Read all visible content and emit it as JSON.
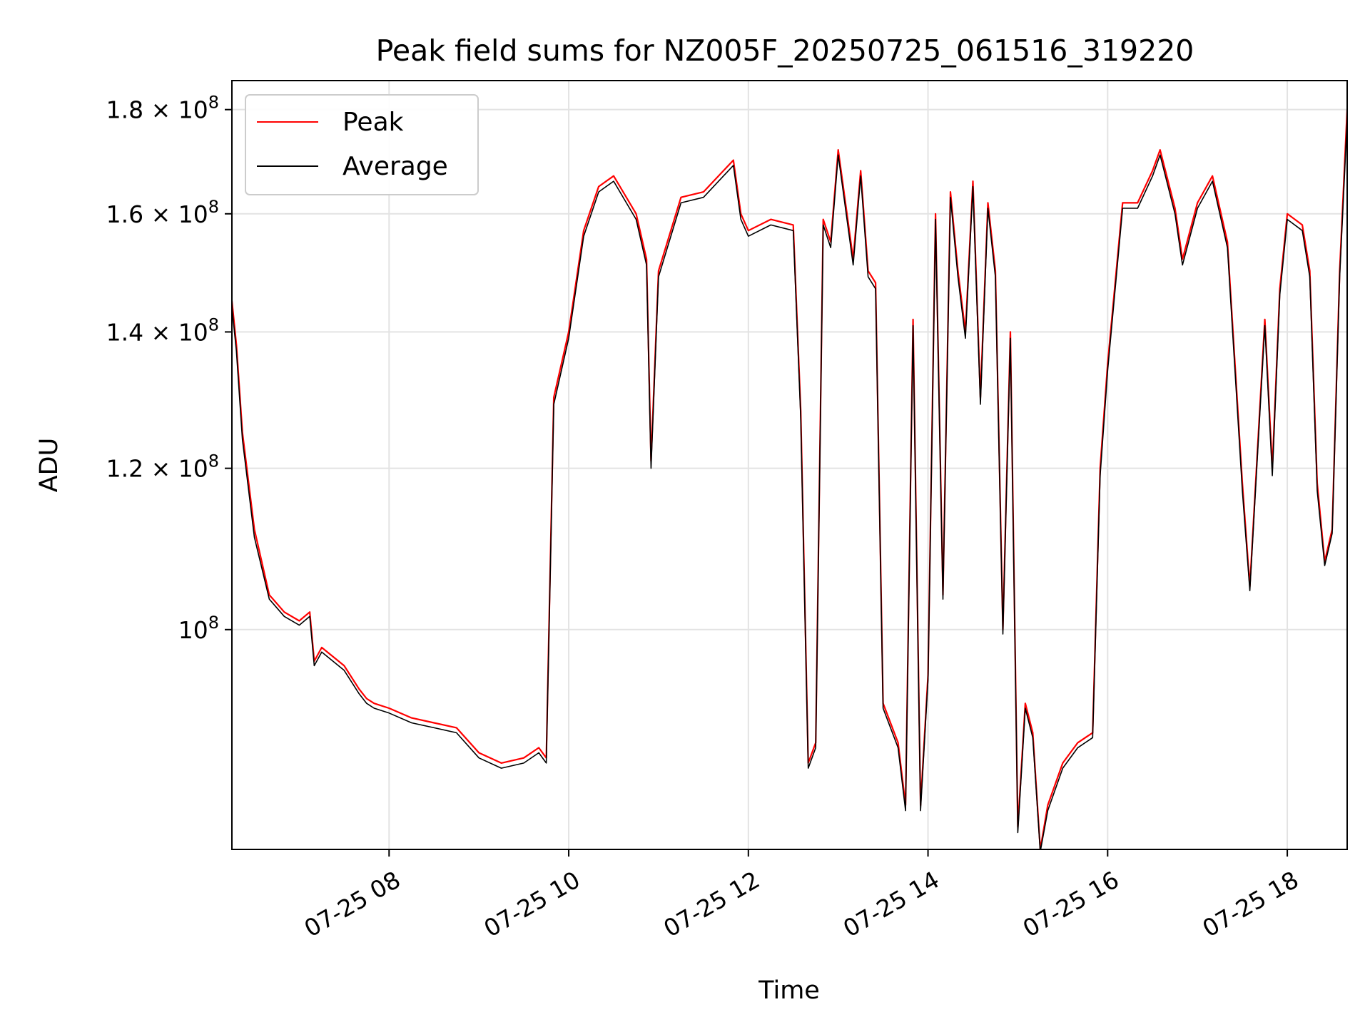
{
  "chart_data": {
    "type": "line",
    "title": "Peak field sums for NZ005F_20250725_061516_319220",
    "xlabel": "Time",
    "ylabel": "ADU",
    "y_scale": "log",
    "ylim": [
      78000000,
      186000000
    ],
    "xlim": [
      "2025-07-25 06:15",
      "2025-07-25 18:40"
    ],
    "grid": true,
    "legend_position": "top-left",
    "x_ticks": [
      {
        "x": "2025-07-25 08:00",
        "label": "07-25 08"
      },
      {
        "x": "2025-07-25 10:00",
        "label": "07-25 10"
      },
      {
        "x": "2025-07-25 12:00",
        "label": "07-25 12"
      },
      {
        "x": "2025-07-25 14:00",
        "label": "07-25 14"
      },
      {
        "x": "2025-07-25 16:00",
        "label": "07-25 16"
      },
      {
        "x": "2025-07-25 18:00",
        "label": "07-25 18"
      }
    ],
    "y_ticks": [
      {
        "y": 100000000,
        "label_base": "10",
        "label_exp": "8",
        "label_mult": ""
      },
      {
        "y": 120000000,
        "label_base": "10",
        "label_exp": "8",
        "label_mult": "1.2 × "
      },
      {
        "y": 140000000,
        "label_base": "10",
        "label_exp": "8",
        "label_mult": "1.4 × "
      },
      {
        "y": 160000000,
        "label_base": "10",
        "label_exp": "8",
        "label_mult": "1.6 × "
      },
      {
        "y": 180000000,
        "label_base": "10",
        "label_exp": "8",
        "label_mult": "1.8 × "
      }
    ],
    "series": [
      {
        "name": "Peak",
        "color": "#ff0000",
        "x": [
          "2025-07-25 06:15",
          "2025-07-25 06:18",
          "2025-07-25 06:22",
          "2025-07-25 06:30",
          "2025-07-25 06:40",
          "2025-07-25 06:50",
          "2025-07-25 07:00",
          "2025-07-25 07:07",
          "2025-07-25 07:10",
          "2025-07-25 07:15",
          "2025-07-25 07:30",
          "2025-07-25 07:40",
          "2025-07-25 07:45",
          "2025-07-25 07:50",
          "2025-07-25 08:00",
          "2025-07-25 08:15",
          "2025-07-25 08:30",
          "2025-07-25 08:45",
          "2025-07-25 09:00",
          "2025-07-25 09:15",
          "2025-07-25 09:30",
          "2025-07-25 09:40",
          "2025-07-25 09:45",
          "2025-07-25 09:50",
          "2025-07-25 10:00",
          "2025-07-25 10:10",
          "2025-07-25 10:20",
          "2025-07-25 10:30",
          "2025-07-25 10:45",
          "2025-07-25 10:52",
          "2025-07-25 10:55",
          "2025-07-25 11:00",
          "2025-07-25 11:15",
          "2025-07-25 11:30",
          "2025-07-25 11:50",
          "2025-07-25 11:55",
          "2025-07-25 12:00",
          "2025-07-25 12:15",
          "2025-07-25 12:30",
          "2025-07-25 12:35",
          "2025-07-25 12:40",
          "2025-07-25 12:45",
          "2025-07-25 12:50",
          "2025-07-25 12:55",
          "2025-07-25 13:00",
          "2025-07-25 13:10",
          "2025-07-25 13:15",
          "2025-07-25 13:20",
          "2025-07-25 13:25",
          "2025-07-25 13:30",
          "2025-07-25 13:40",
          "2025-07-25 13:45",
          "2025-07-25 13:50",
          "2025-07-25 13:55",
          "2025-07-25 14:00",
          "2025-07-25 14:05",
          "2025-07-25 14:10",
          "2025-07-25 14:15",
          "2025-07-25 14:20",
          "2025-07-25 14:25",
          "2025-07-25 14:30",
          "2025-07-25 14:35",
          "2025-07-25 14:40",
          "2025-07-25 14:45",
          "2025-07-25 14:50",
          "2025-07-25 14:55",
          "2025-07-25 15:00",
          "2025-07-25 15:05",
          "2025-07-25 15:10",
          "2025-07-25 15:15",
          "2025-07-25 15:20",
          "2025-07-25 15:30",
          "2025-07-25 15:40",
          "2025-07-25 15:50",
          "2025-07-25 15:55",
          "2025-07-25 16:00",
          "2025-07-25 16:10",
          "2025-07-25 16:20",
          "2025-07-25 16:30",
          "2025-07-25 16:35",
          "2025-07-25 16:45",
          "2025-07-25 16:50",
          "2025-07-25 17:00",
          "2025-07-25 17:10",
          "2025-07-25 17:20",
          "2025-07-25 17:30",
          "2025-07-25 17:35",
          "2025-07-25 17:45",
          "2025-07-25 17:50",
          "2025-07-25 17:55",
          "2025-07-25 18:00",
          "2025-07-25 18:10",
          "2025-07-25 18:15",
          "2025-07-25 18:20",
          "2025-07-25 18:25",
          "2025-07-25 18:30",
          "2025-07-25 18:35",
          "2025-07-25 18:40"
        ],
        "values": [
          145000000,
          138000000,
          125000000,
          112000000,
          104000000,
          102000000,
          101000000,
          102000000,
          96500000,
          98000000,
          96000000,
          93500000,
          92500000,
          92000000,
          91500000,
          90500000,
          90000000,
          89500000,
          87000000,
          86000000,
          86500000,
          87500000,
          86500000,
          130000000,
          140000000,
          157000000,
          165000000,
          167000000,
          160000000,
          152000000,
          121000000,
          150000000,
          163000000,
          164000000,
          170000000,
          160000000,
          157000000,
          159000000,
          158000000,
          128000000,
          86000000,
          88000000,
          159000000,
          155000000,
          172000000,
          152000000,
          168000000,
          150000000,
          148000000,
          92000000,
          88000000,
          82000000,
          142000000,
          82000000,
          95000000,
          160000000,
          104000000,
          164000000,
          150000000,
          140000000,
          166000000,
          130000000,
          162000000,
          150000000,
          100000000,
          140000000,
          80000000,
          92000000,
          89000000,
          78000000,
          82000000,
          86000000,
          88000000,
          89000000,
          120000000,
          135000000,
          162000000,
          162000000,
          168000000,
          172000000,
          161000000,
          152000000,
          162000000,
          167000000,
          155000000,
          118000000,
          105000000,
          142000000,
          120000000,
          147000000,
          160000000,
          158000000,
          150000000,
          118000000,
          108000000,
          112000000,
          150000000,
          180000000
        ]
      },
      {
        "name": "Average",
        "color": "#000000",
        "x": [
          "2025-07-25 06:15",
          "2025-07-25 06:18",
          "2025-07-25 06:22",
          "2025-07-25 06:30",
          "2025-07-25 06:40",
          "2025-07-25 06:50",
          "2025-07-25 07:00",
          "2025-07-25 07:07",
          "2025-07-25 07:10",
          "2025-07-25 07:15",
          "2025-07-25 07:30",
          "2025-07-25 07:40",
          "2025-07-25 07:45",
          "2025-07-25 07:50",
          "2025-07-25 08:00",
          "2025-07-25 08:15",
          "2025-07-25 08:30",
          "2025-07-25 08:45",
          "2025-07-25 09:00",
          "2025-07-25 09:15",
          "2025-07-25 09:30",
          "2025-07-25 09:40",
          "2025-07-25 09:45",
          "2025-07-25 09:50",
          "2025-07-25 10:00",
          "2025-07-25 10:10",
          "2025-07-25 10:20",
          "2025-07-25 10:30",
          "2025-07-25 10:45",
          "2025-07-25 10:52",
          "2025-07-25 10:55",
          "2025-07-25 11:00",
          "2025-07-25 11:15",
          "2025-07-25 11:30",
          "2025-07-25 11:50",
          "2025-07-25 11:55",
          "2025-07-25 12:00",
          "2025-07-25 12:15",
          "2025-07-25 12:30",
          "2025-07-25 12:35",
          "2025-07-25 12:40",
          "2025-07-25 12:45",
          "2025-07-25 12:50",
          "2025-07-25 12:55",
          "2025-07-25 13:00",
          "2025-07-25 13:10",
          "2025-07-25 13:15",
          "2025-07-25 13:20",
          "2025-07-25 13:25",
          "2025-07-25 13:30",
          "2025-07-25 13:40",
          "2025-07-25 13:45",
          "2025-07-25 13:50",
          "2025-07-25 13:55",
          "2025-07-25 14:00",
          "2025-07-25 14:05",
          "2025-07-25 14:10",
          "2025-07-25 14:15",
          "2025-07-25 14:20",
          "2025-07-25 14:25",
          "2025-07-25 14:30",
          "2025-07-25 14:35",
          "2025-07-25 14:40",
          "2025-07-25 14:45",
          "2025-07-25 14:50",
          "2025-07-25 14:55",
          "2025-07-25 15:00",
          "2025-07-25 15:05",
          "2025-07-25 15:10",
          "2025-07-25 15:15",
          "2025-07-25 15:20",
          "2025-07-25 15:30",
          "2025-07-25 15:40",
          "2025-07-25 15:50",
          "2025-07-25 15:55",
          "2025-07-25 16:00",
          "2025-07-25 16:10",
          "2025-07-25 16:20",
          "2025-07-25 16:30",
          "2025-07-25 16:35",
          "2025-07-25 16:45",
          "2025-07-25 16:50",
          "2025-07-25 17:00",
          "2025-07-25 17:10",
          "2025-07-25 17:20",
          "2025-07-25 17:30",
          "2025-07-25 17:35",
          "2025-07-25 17:45",
          "2025-07-25 17:50",
          "2025-07-25 17:55",
          "2025-07-25 18:00",
          "2025-07-25 18:10",
          "2025-07-25 18:15",
          "2025-07-25 18:20",
          "2025-07-25 18:25",
          "2025-07-25 18:30",
          "2025-07-25 18:35",
          "2025-07-25 18:40"
        ],
        "values": [
          144000000,
          137000000,
          124000000,
          111000000,
          103500000,
          101500000,
          100500000,
          101500000,
          96000000,
          97500000,
          95500000,
          93000000,
          92000000,
          91500000,
          91000000,
          90000000,
          89500000,
          89000000,
          86500000,
          85500000,
          86000000,
          87000000,
          86000000,
          129000000,
          139000000,
          156000000,
          164000000,
          166000000,
          159000000,
          151000000,
          120000000,
          149000000,
          162000000,
          163000000,
          169000000,
          159000000,
          156000000,
          158000000,
          157000000,
          127000000,
          85500000,
          87500000,
          158000000,
          154000000,
          171000000,
          151000000,
          167000000,
          149000000,
          147000000,
          91500000,
          87500000,
          81500000,
          141000000,
          81500000,
          94500000,
          159000000,
          103500000,
          163000000,
          149000000,
          139000000,
          165000000,
          129000000,
          161000000,
          149000000,
          99500000,
          139000000,
          79500000,
          91500000,
          88500000,
          77800000,
          81500000,
          85500000,
          87500000,
          88500000,
          119000000,
          134000000,
          161000000,
          161000000,
          167000000,
          171000000,
          160000000,
          151000000,
          161000000,
          166000000,
          154000000,
          117000000,
          104500000,
          141000000,
          119000000,
          146000000,
          159000000,
          157000000,
          149000000,
          117000000,
          107500000,
          111500000,
          149000000,
          178000000
        ]
      }
    ]
  }
}
